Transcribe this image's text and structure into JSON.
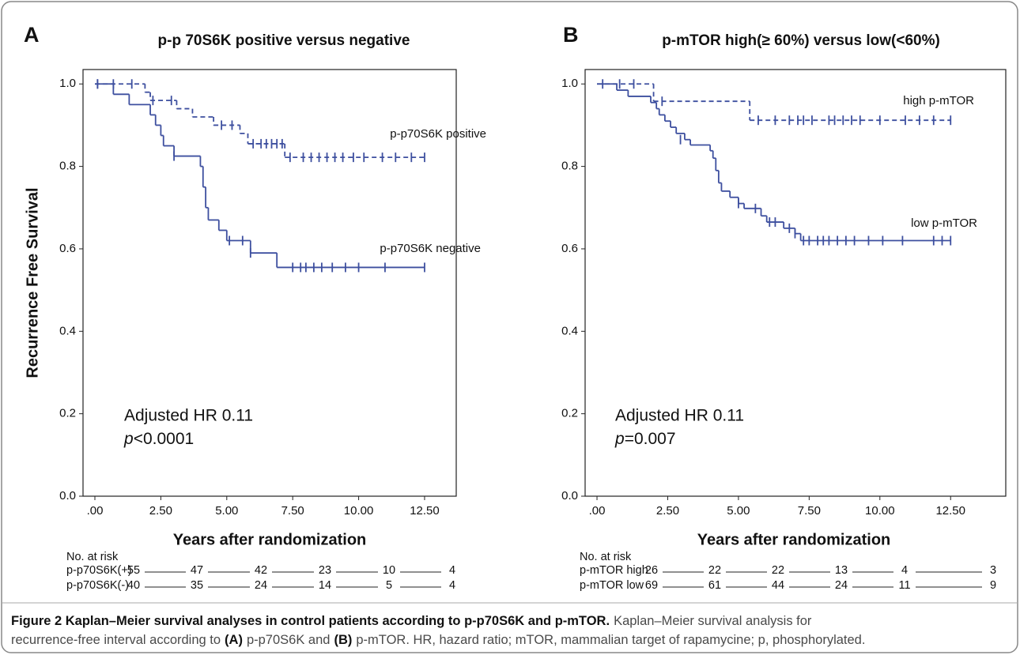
{
  "chart_data": [
    {
      "type": "step",
      "panel": "A",
      "title": "p-p 70S6K positive versus negative",
      "xlabel": "Years after randomization",
      "ylabel": "Recurrence Free Survival",
      "xlim": [
        -0.45,
        13.7
      ],
      "ylim": [
        0,
        1.035
      ],
      "xticks": [
        {
          "value": 0,
          "label": ".00"
        },
        {
          "value": 2.5,
          "label": "2.50"
        },
        {
          "value": 5,
          "label": "5.00"
        },
        {
          "value": 7.5,
          "label": "7.50"
        },
        {
          "value": 10,
          "label": "10.00"
        },
        {
          "value": 12.5,
          "label": "12.50"
        }
      ],
      "yticks": [
        {
          "value": 0,
          "label": "0.0"
        },
        0.2,
        0.4,
        0.6,
        0.8,
        {
          "value": 1,
          "label": "1.0"
        }
      ],
      "series": [
        {
          "name": "p-p70S6K positive",
          "color": "#3d4f9f",
          "dash": true,
          "x": [
            0,
            1.9,
            2.1,
            3.1,
            3.7,
            4.5,
            5.5,
            5.8,
            7.2
          ],
          "values": [
            1,
            0.98,
            0.96,
            0.94,
            0.92,
            0.9,
            0.88,
            0.855,
            0.822
          ],
          "censor_x": [
            0.1,
            0.7,
            1.4,
            2.2,
            2.9,
            4.8,
            5.2,
            6.0,
            6.3,
            6.5,
            6.7,
            6.9,
            7.1,
            7.4,
            7.9,
            8.2,
            8.5,
            8.8,
            9.1,
            9.4,
            9.8,
            10.2,
            10.9,
            11.4,
            12.0,
            12.5
          ],
          "censor_values": [
            1,
            1,
            1,
            0.96,
            0.96,
            0.9,
            0.9,
            0.855,
            0.855,
            0.855,
            0.855,
            0.855,
            0.855,
            0.822,
            0.822,
            0.822,
            0.822,
            0.822,
            0.822,
            0.822,
            0.822,
            0.822,
            0.822,
            0.822,
            0.822,
            0.822
          ]
        },
        {
          "name": "p-p70S6K negative",
          "color": "#3d4f9f",
          "dash": false,
          "x": [
            0,
            0.7,
            1.3,
            2.1,
            2.3,
            2.5,
            2.6,
            3.0,
            4.0,
            4.1,
            4.2,
            4.3,
            4.7,
            5.0,
            5.9,
            6.9
          ],
          "values": [
            1,
            0.975,
            0.95,
            0.925,
            0.9,
            0.875,
            0.85,
            0.825,
            0.8,
            0.75,
            0.7,
            0.67,
            0.645,
            0.62,
            0.59,
            0.555
          ],
          "censor_x": [
            0.1,
            3.0,
            5.1,
            5.6,
            5.9,
            7.5,
            7.8,
            8.0,
            8.3,
            8.6,
            9.0,
            9.5,
            10.0,
            11.0,
            12.5
          ],
          "censor_values": [
            1,
            0.825,
            0.62,
            0.62,
            0.59,
            0.555,
            0.555,
            0.555,
            0.555,
            0.555,
            0.555,
            0.555,
            0.555,
            0.555,
            0.555
          ]
        }
      ],
      "annotations": {
        "hr": "Adjusted HR 0.11",
        "p_label": "p",
        "p_value": "<0.0001"
      },
      "risk_table": {
        "title": "No. at risk",
        "rows": [
          {
            "label": "p-p70S6K(+)",
            "values": [
              55,
              47,
              42,
              23,
              10,
              4
            ]
          },
          {
            "label": "p-p70S6K(-)",
            "values": [
              40,
              35,
              24,
              14,
              5,
              4
            ]
          }
        ]
      }
    },
    {
      "type": "step",
      "panel": "B",
      "title": "p-mTOR high(≥ 60%) versus low(<60%)",
      "xlabel": "Years after randomization",
      "xlim": [
        -0.42,
        14.45
      ],
      "ylim": [
        0,
        1.035
      ],
      "xticks": [
        {
          "value": 0,
          "label": ".00"
        },
        {
          "value": 2.5,
          "label": "2.50"
        },
        {
          "value": 5,
          "label": "5.00"
        },
        {
          "value": 7.5,
          "label": "7.50"
        },
        {
          "value": 10,
          "label": "10.00"
        },
        {
          "value": 12.5,
          "label": "12.50"
        }
      ],
      "yticks": [
        {
          "value": 0,
          "label": "0.0"
        },
        0.2,
        0.4,
        0.6,
        0.8,
        {
          "value": 1,
          "label": "1.0"
        }
      ],
      "series": [
        {
          "name": "high p-mTOR",
          "color": "#3d4f9f",
          "dash": true,
          "x": [
            0,
            2.0,
            5.4
          ],
          "values": [
            1,
            0.958,
            0.912
          ],
          "censor_x": [
            0.2,
            0.8,
            1.3,
            2.3,
            5.7,
            6.3,
            6.8,
            7.1,
            7.3,
            7.6,
            8.2,
            8.4,
            8.7,
            9.0,
            9.3,
            10.0,
            10.9,
            11.4,
            11.9,
            12.5
          ],
          "censor_values": [
            1,
            1,
            1,
            0.958,
            0.912,
            0.912,
            0.912,
            0.912,
            0.912,
            0.912,
            0.912,
            0.912,
            0.912,
            0.912,
            0.912,
            0.912,
            0.912,
            0.912,
            0.912,
            0.912
          ]
        },
        {
          "name": "low p-mTOR",
          "color": "#3d4f9f",
          "dash": false,
          "x": [
            0,
            0.7,
            1.1,
            1.9,
            2.1,
            2.2,
            2.4,
            2.6,
            2.8,
            3.1,
            3.3,
            4.0,
            4.1,
            4.2,
            4.3,
            4.4,
            4.7,
            5.0,
            5.2,
            5.8,
            6.0,
            6.6,
            7.0,
            7.2
          ],
          "values": [
            1,
            0.985,
            0.97,
            0.955,
            0.94,
            0.925,
            0.91,
            0.895,
            0.88,
            0.865,
            0.852,
            0.838,
            0.82,
            0.79,
            0.76,
            0.74,
            0.725,
            0.71,
            0.698,
            0.68,
            0.665,
            0.65,
            0.637,
            0.62
          ],
          "censor_x": [
            2.95,
            5.0,
            5.6,
            6.1,
            6.3,
            6.8,
            7.0,
            7.3,
            7.5,
            7.8,
            8.0,
            8.2,
            8.5,
            8.8,
            9.1,
            9.6,
            10.1,
            10.8,
            11.9,
            12.2,
            12.5
          ],
          "censor_values": [
            0.865,
            0.71,
            0.698,
            0.665,
            0.665,
            0.65,
            0.637,
            0.62,
            0.62,
            0.62,
            0.62,
            0.62,
            0.62,
            0.62,
            0.62,
            0.62,
            0.62,
            0.62,
            0.62,
            0.62,
            0.62
          ]
        }
      ],
      "annotations": {
        "hr": "Adjusted HR 0.11",
        "p_label": "p",
        "p_value": "=0.007"
      },
      "risk_table": {
        "title": "No. at risk",
        "rows": [
          {
            "label": "p-mTOR high",
            "values": [
              26,
              22,
              22,
              13,
              4,
              3
            ]
          },
          {
            "label": "p-mTOR low",
            "values": [
              69,
              61,
              44,
              24,
              11,
              9
            ]
          }
        ]
      }
    }
  ],
  "caption": [
    [
      {
        "text": "Figure 2 Kaplan–Meier survival analyses in control patients according to p-p70S6K and p-mTOR.",
        "bold": true
      },
      {
        "text": "Kaplan–Meier survival analysis for",
        "bold": false
      }
    ],
    [
      {
        "text": "recurrence-free interval according to",
        "bold": false
      },
      {
        "text": "(A)",
        "bold": true
      },
      {
        "text": "p-p70S6K and",
        "bold": false
      },
      {
        "text": "(B)",
        "bold": true
      },
      {
        "text": "p-mTOR. HR, hazard ratio; mTOR, mammalian target of rapamycine; p, phosphorylated.",
        "bold": false
      }
    ]
  ]
}
